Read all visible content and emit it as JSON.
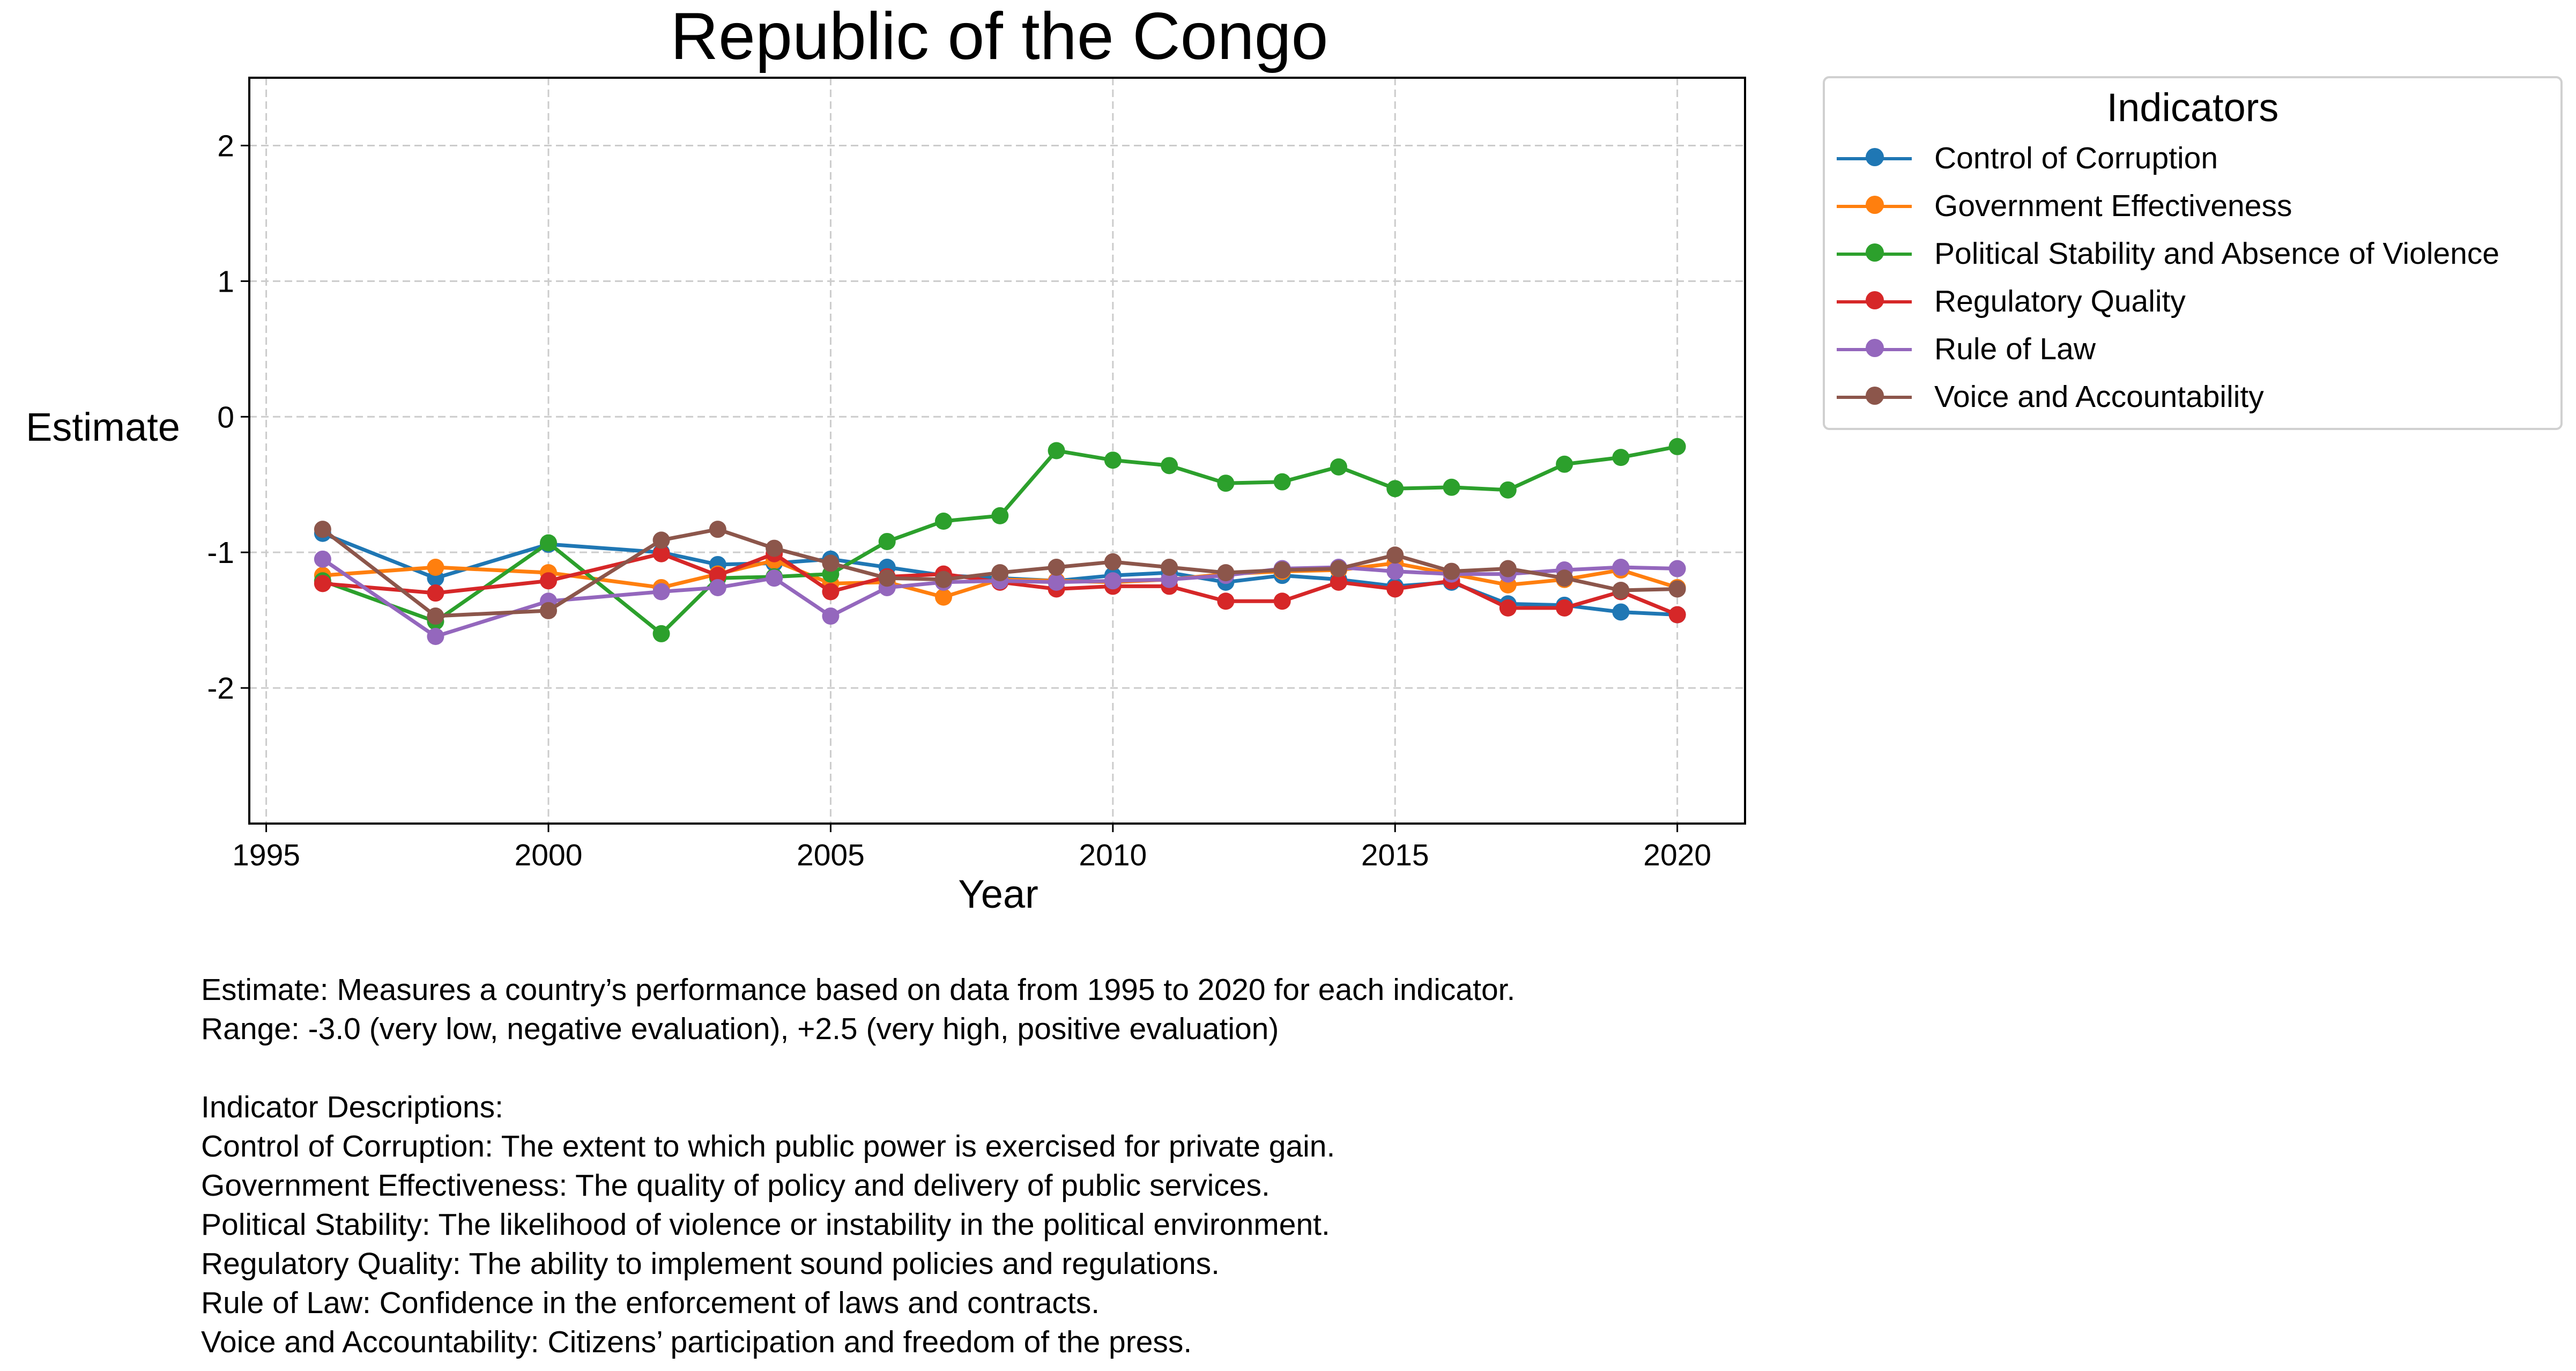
{
  "chart_data": {
    "type": "line",
    "title": "Republic of the Congo",
    "xlabel": "Year",
    "ylabel": "Estimate",
    "xlim": [
      1994.7,
      2021.2
    ],
    "ylim": [
      -3.0,
      2.5
    ],
    "x_ticks": [
      1995,
      2000,
      2005,
      2010,
      2015,
      2020
    ],
    "y_ticks": [
      -2,
      -1,
      0,
      1,
      2
    ],
    "y_tick_labels": [
      "-2",
      "-1",
      "0",
      "1",
      "2"
    ],
    "grid": true,
    "legend_title": "Indicators",
    "legend_placement": "outside-top-right",
    "x": [
      1996,
      1998,
      2000,
      2002,
      2003,
      2004,
      2005,
      2006,
      2007,
      2008,
      2009,
      2010,
      2011,
      2012,
      2013,
      2014,
      2015,
      2016,
      2017,
      2018,
      2019,
      2020
    ],
    "series": [
      {
        "name": "Control of Corruption",
        "color": "#1f77b4",
        "values": [
          -0.86,
          -1.19,
          -0.94,
          -1.0,
          -1.09,
          -1.08,
          -1.05,
          -1.11,
          -1.17,
          -1.19,
          -1.21,
          -1.17,
          -1.15,
          -1.22,
          -1.17,
          -1.2,
          -1.25,
          -1.22,
          -1.38,
          -1.39,
          -1.44,
          -1.46
        ]
      },
      {
        "name": "Government Effectiveness",
        "color": "#ff7f0e",
        "values": [
          -1.17,
          -1.11,
          -1.15,
          -1.26,
          -1.16,
          -1.06,
          -1.23,
          -1.22,
          -1.33,
          -1.2,
          -1.21,
          -1.22,
          -1.2,
          -1.16,
          -1.14,
          -1.13,
          -1.08,
          -1.16,
          -1.24,
          -1.2,
          -1.13,
          -1.26
        ]
      },
      {
        "name": "Political Stability and Absence of Violence",
        "color": "#2ca02c",
        "values": [
          -1.21,
          -1.51,
          -0.93,
          -1.6,
          -1.19,
          -1.18,
          -1.16,
          -0.92,
          -0.77,
          -0.73,
          -0.25,
          -0.32,
          -0.36,
          -0.49,
          -0.48,
          -0.37,
          -0.53,
          -0.52,
          -0.54,
          -0.35,
          -0.3,
          -0.22
        ]
      },
      {
        "name": "Regulatory Quality",
        "color": "#d62728",
        "values": [
          -1.23,
          -1.3,
          -1.21,
          -1.01,
          -1.17,
          -1.01,
          -1.29,
          -1.18,
          -1.16,
          -1.22,
          -1.27,
          -1.25,
          -1.25,
          -1.36,
          -1.36,
          -1.22,
          -1.27,
          -1.21,
          -1.41,
          -1.41,
          -1.29,
          -1.46
        ]
      },
      {
        "name": "Rule of Law",
        "color": "#9467bd",
        "values": [
          -1.05,
          -1.62,
          -1.36,
          -1.29,
          -1.26,
          -1.19,
          -1.47,
          -1.26,
          -1.22,
          -1.21,
          -1.22,
          -1.21,
          -1.2,
          -1.17,
          -1.12,
          -1.11,
          -1.14,
          -1.16,
          -1.16,
          -1.13,
          -1.11,
          -1.12
        ]
      },
      {
        "name": "Voice and Accountability",
        "color": "#8c564b",
        "values": [
          -0.83,
          -1.47,
          -1.43,
          -0.91,
          -0.83,
          -0.97,
          -1.08,
          -1.19,
          -1.2,
          -1.15,
          -1.11,
          -1.07,
          -1.11,
          -1.15,
          -1.13,
          -1.12,
          -1.02,
          -1.14,
          -1.12,
          -1.19,
          -1.28,
          -1.27
        ]
      }
    ]
  },
  "notes": {
    "line1": "Estimate: Measures a country’s performance based on data from 1995 to 2020 for each indicator.",
    "line2": "Range: -3.0 (very low, negative evaluation), +2.5 (very high, positive evaluation)",
    "heading": "Indicator Descriptions:",
    "desc1": "Control of Corruption: The extent to which public power is exercised for private gain.",
    "desc2": "Government Effectiveness: The quality of policy and delivery of public services.",
    "desc3": "Political Stability: The likelihood of violence or instability in the political environment.",
    "desc4": "Regulatory Quality: The ability to implement sound policies and regulations.",
    "desc5": "Rule of Law: Confidence in the enforcement of laws and contracts.",
    "desc6": "Voice and Accountability: Citizens’ participation and freedom of the press."
  }
}
